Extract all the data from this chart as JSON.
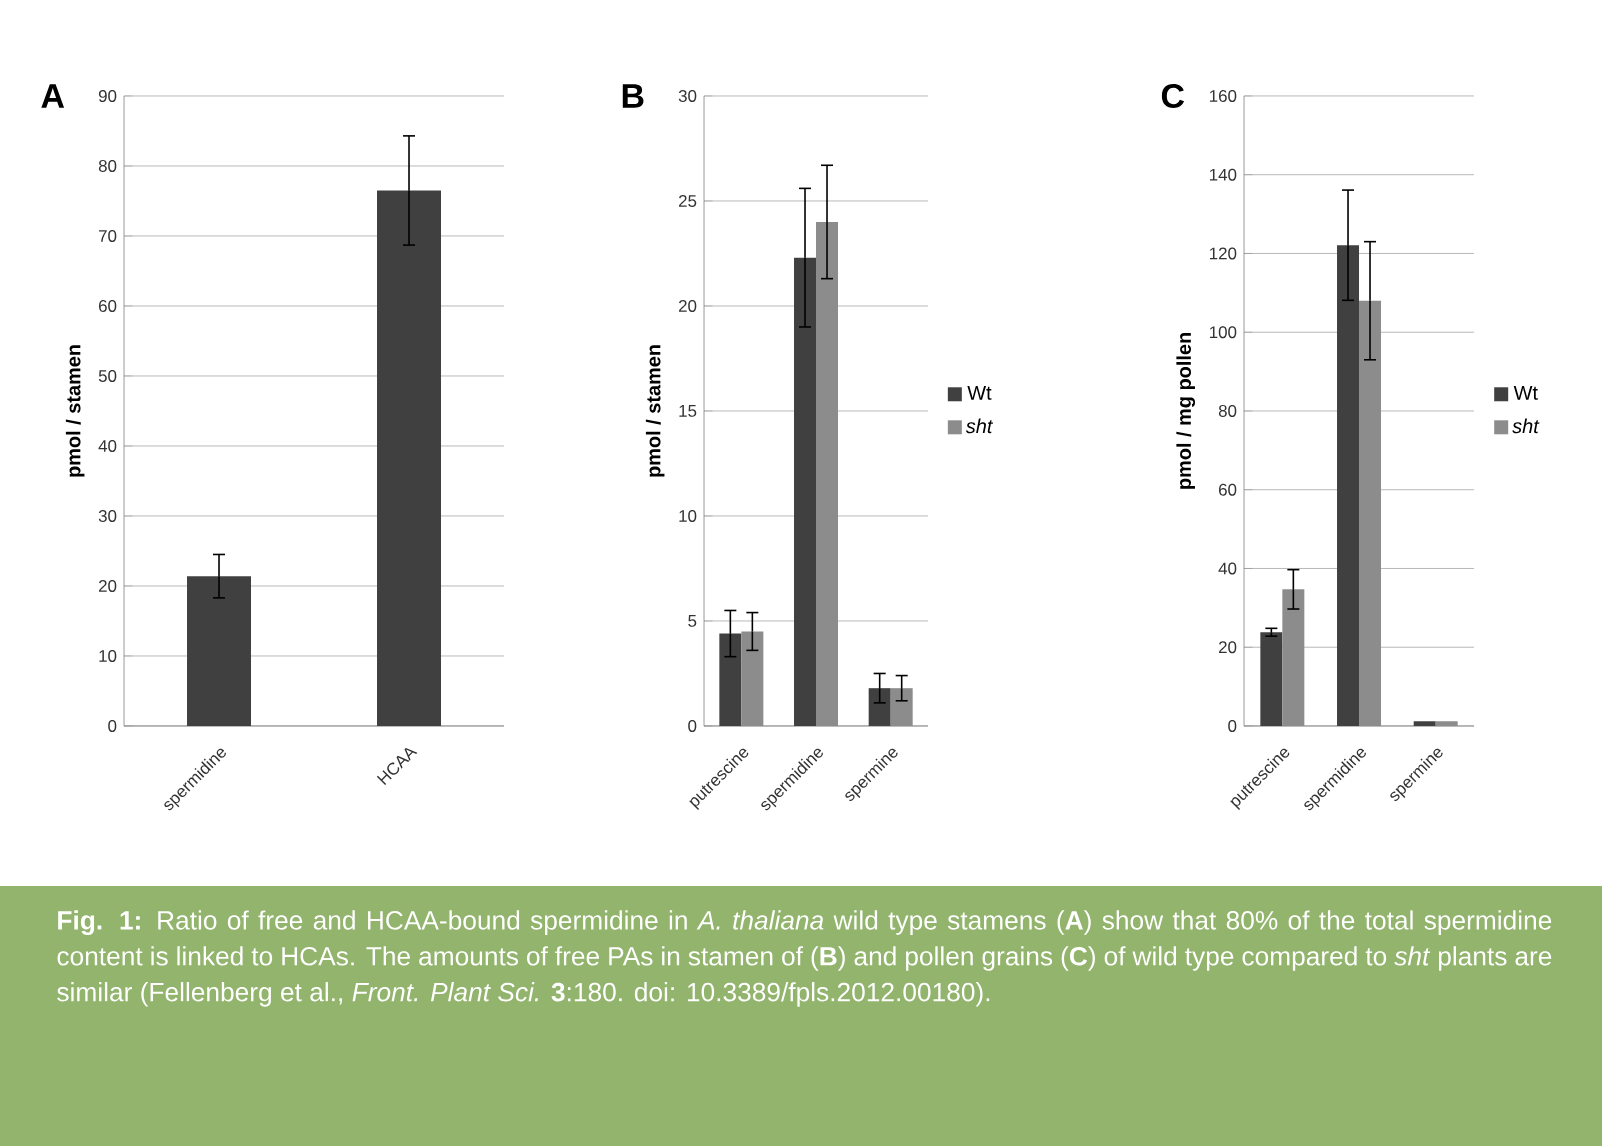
{
  "chart_data": [
    {
      "type": "bar",
      "title": "A",
      "ylabel": "pmol / stamen",
      "categories": [
        "spermidine",
        "HCAA"
      ],
      "values": [
        21.4,
        76.5
      ],
      "errors": [
        3.1,
        7.8
      ],
      "color": "#404040",
      "ylim": [
        0,
        90
      ],
      "yticks": [
        0,
        10,
        20,
        30,
        40,
        50,
        60,
        70,
        80,
        90
      ],
      "grid": "y"
    },
    {
      "type": "bar",
      "title": "B",
      "ylabel": "pmol / stamen",
      "categories": [
        "putrescine",
        "spermidine",
        "spermine"
      ],
      "series": [
        {
          "name": "Wt",
          "color": "#404040",
          "values": [
            4.4,
            22.3,
            1.8
          ],
          "errors": [
            1.1,
            3.3,
            0.7
          ]
        },
        {
          "name": "*sht*",
          "color": "#8c8c8c",
          "values": [
            4.5,
            24.0,
            1.8
          ],
          "errors": [
            0.9,
            2.7,
            0.6
          ]
        }
      ],
      "ylim": [
        0,
        30
      ],
      "yticks": [
        0,
        5,
        10,
        15,
        20,
        25,
        30
      ],
      "grid": "y",
      "legend": "right"
    },
    {
      "type": "bar",
      "title": "C",
      "ylabel": "pmol / mg pollen",
      "categories": [
        "putrescine",
        "spermidine",
        "spermine"
      ],
      "series": [
        {
          "name": "Wt",
          "color": "#404040",
          "values": [
            23.8,
            122.1,
            1.2
          ],
          "errors": [
            1,
            14,
            null
          ]
        },
        {
          "name": "*sht*",
          "color": "#8c8c8c",
          "values": [
            34.7,
            108,
            1.2
          ],
          "errors": [
            5,
            15,
            null
          ]
        }
      ],
      "ylim": [
        0,
        160
      ],
      "yticks": [
        0,
        20,
        40,
        60,
        80,
        100,
        120,
        140,
        160
      ],
      "grid": "y",
      "legend": "right"
    },
    {
      "type": "other",
      "annotations": [
        "**Fig. 1:** Ratio of free and HCAA-bound spermidine in *A. thaliana* wild type stamens (**A**) show that 80% of the total spermidine content is linked to HCAs. The amounts of free PAs in stamen of (**B**) and pollen grains (**C**) of wild type compared to *sht* plants are similar (Fellenberg et al., *Front. Plant Sci.* **3**:180. doi: 10.3389/fpls.2012.00180)."
      ]
    }
  ]
}
